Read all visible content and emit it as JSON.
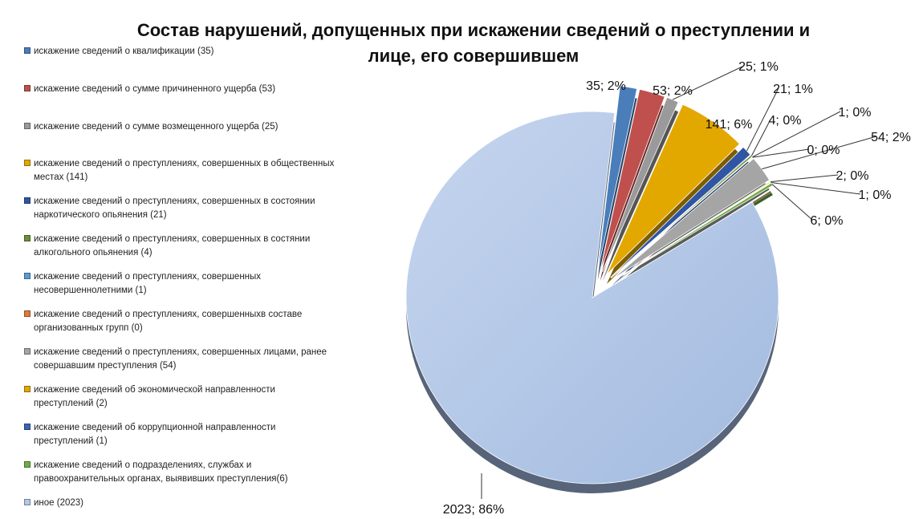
{
  "chart_data": {
    "type": "pie",
    "title": "Состав нарушений, допущенных при искажении сведений о преступлении и лице, его совершившем",
    "legend_position": "left",
    "categories": [
      "искажение сведений о квалификации (35)",
      "искажение сведений о сумме причиненного ущерба (53)",
      "искажение сведений о сумме возмещенного ущерба (25)",
      "искажение сведений о преступлениях, совершенных в общественных местах (141)",
      "искажение сведений о преступлениях, совершенных в состоянии наркотического опьянения (21)",
      "искажение сведений о преступлениях, совершенных в состянии алкогольного опьянения (4)",
      "искажение сведений о преступлениях, совершенных несовершеннолетними (1)",
      "искажение сведений о преступлениях, совершенныхв составе организованных групп (0)",
      "искажение сведений о преступлениях, совершенных лицами, ранее совершавшим преступления (54)",
      "искажение сведений об экономической направленности преступлений (2)",
      "искажение сведений об коррупционной направленности преступлений (1)",
      "искажение сведений о подразделениях, службах и правоохранительных органах, выявивших преступления(6)",
      "иное (2023)"
    ],
    "values": [
      35,
      53,
      25,
      141,
      21,
      4,
      1,
      0,
      54,
      2,
      1,
      6,
      2023
    ],
    "data_labels": [
      "35; 2%",
      "53; 2%",
      "25; 1%",
      "141; 6%",
      "21; 1%",
      "4; 0%",
      "1; 0%",
      "0; 0%",
      "54; 2%",
      "2; 0%",
      "1; 0%",
      "6; 0%",
      "2023; 86%"
    ],
    "colors": [
      "#4a7ebb",
      "#c0504d",
      "#9a9a9a",
      "#e3a800",
      "#2f55a3",
      "#6c8f3a",
      "#5b9bd5",
      "#e07a3c",
      "#a5a5a5",
      "#e3a800",
      "#3f63b5",
      "#70ad47",
      "#b4c7e7"
    ]
  }
}
